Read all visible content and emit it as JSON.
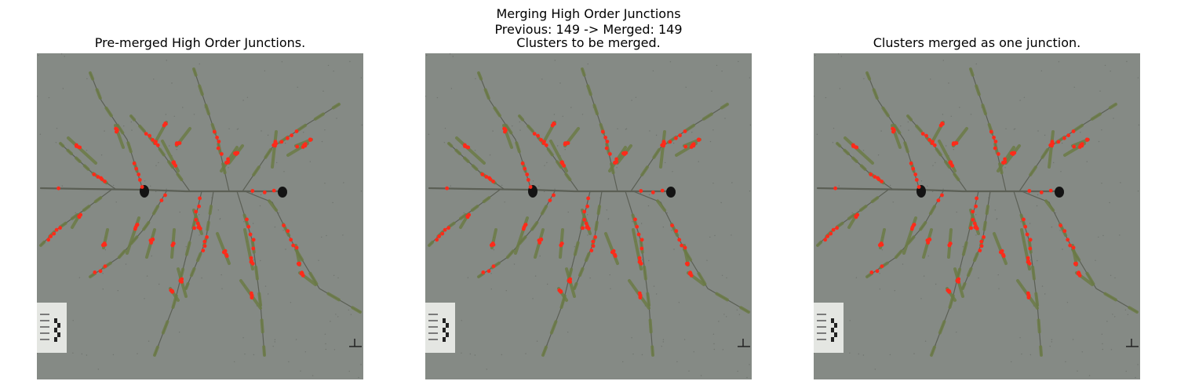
{
  "figure": {
    "title": "Merging High Order Junctions",
    "subtitle": "Previous: 149 -> Merged: 149"
  },
  "panels": [
    {
      "title": "Pre-merged High Order Junctions."
    },
    {
      "title": "Clusters to be merged."
    },
    {
      "title": "Clusters merged as one junction."
    }
  ],
  "colors": {
    "background": "#8e938e",
    "stem": "#5b5f55",
    "spikelet": "#6b7a45",
    "junction_marker": "#ff2a1a",
    "ruler_card": "#e4e6e2"
  },
  "icons": [
    "junction-marker-icon"
  ],
  "marker_count": 149
}
